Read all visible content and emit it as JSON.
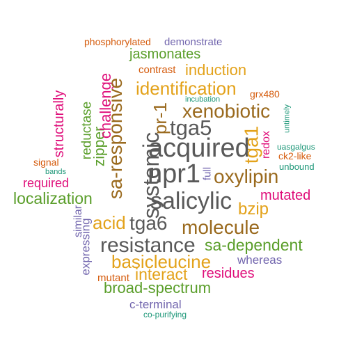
{
  "palette": {
    "dark_gray": "#595959",
    "brown": "#9a6a1e",
    "gold": "#e3a21a",
    "pink": "#df0e7a",
    "green": "#5a9e2a",
    "purple": "#7266ae",
    "teal": "#1d9778",
    "orange": "#d55b0c"
  },
  "words": {
    "phosphorylated": "phosphorylated",
    "demonstrate": "demonstrate",
    "jasmonates": "jasmonates",
    "contrast": "contrast",
    "induction": "induction",
    "identification": "identification",
    "grx480": "grx480",
    "incubation": "incubation",
    "structurally": "structurally",
    "reductase": "reductase",
    "zipper": "zipper",
    "challenge": "challenge",
    "sa_responsive": "sa-responsive",
    "systemic": "systemic",
    "pr_1": "pr-1",
    "xenobiotic": "xenobiotic",
    "tga5": "tga5",
    "acquired": "acquired",
    "tga1": "tga1",
    "redox": "redox",
    "untimely": "untimely",
    "uasgalgus": "uasgalgus",
    "ck2_like": "ck2-like",
    "unbound": "unbound",
    "signal": "signal",
    "bands": "bands",
    "required": "required",
    "npr1": "npr1",
    "full": "full",
    "oxylipin": "oxylipin",
    "localization": "localization",
    "salicylic": "salicylic",
    "mutated": "mutated",
    "bzip": "bzip",
    "similar": "similar",
    "acid": "acid",
    "tga6": "tga6",
    "molecule": "molecule",
    "expressing": "expressing",
    "resistance": "resistance",
    "sa_dependent": "sa-dependent",
    "basicleucine": "basicleucine",
    "whereas": "whereas",
    "mutant": "mutant",
    "interact": "interact",
    "residues": "residues",
    "broad_spectrum": "broad-spectrum",
    "c_terminal": "c-terminal",
    "co_purifying": "co-purifying"
  }
}
